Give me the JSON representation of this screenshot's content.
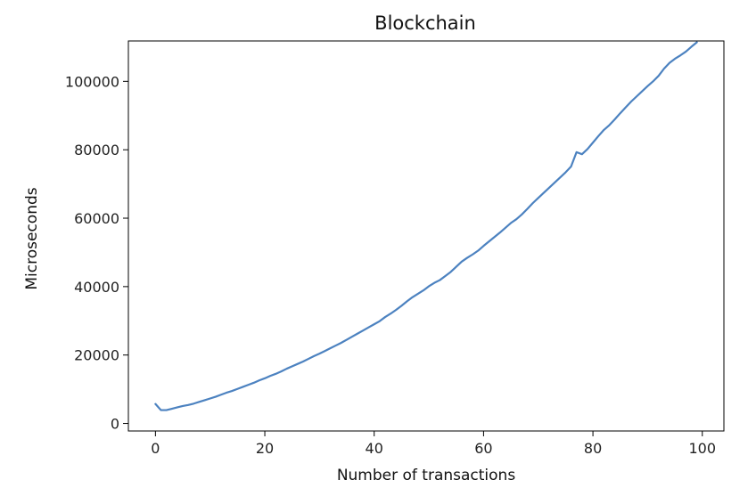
{
  "chart_data": {
    "type": "line",
    "title": "Blockchain",
    "xlabel": "Number of transactions",
    "ylabel": "Microseconds",
    "xlim": [
      -4.95,
      103.95
    ],
    "ylim": [
      -2200,
      111800
    ],
    "xticks": [
      0,
      20,
      40,
      60,
      80,
      100
    ],
    "yticks": [
      0,
      20000,
      40000,
      60000,
      80000,
      100000
    ],
    "grid": false,
    "series": [
      {
        "color": "#4c82c0",
        "x": [
          0,
          1,
          2,
          3,
          4,
          5,
          6,
          7,
          8,
          9,
          10,
          11,
          12,
          13,
          14,
          15,
          16,
          17,
          18,
          19,
          20,
          21,
          22,
          23,
          24,
          25,
          26,
          27,
          28,
          29,
          30,
          31,
          32,
          33,
          34,
          35,
          36,
          37,
          38,
          39,
          40,
          41,
          42,
          43,
          44,
          45,
          46,
          47,
          48,
          49,
          50,
          51,
          52,
          53,
          54,
          55,
          56,
          57,
          58,
          59,
          60,
          61,
          62,
          63,
          64,
          65,
          66,
          67,
          68,
          69,
          70,
          71,
          72,
          73,
          74,
          75,
          76,
          77,
          78,
          79,
          80,
          81,
          82,
          83,
          84,
          85,
          86,
          87,
          88,
          89,
          90,
          91,
          92,
          93,
          94,
          95,
          96,
          97,
          98,
          99
        ],
        "values": [
          5700,
          3900,
          3900,
          4300,
          4700,
          5100,
          5400,
          5800,
          6300,
          6800,
          7300,
          7800,
          8400,
          9000,
          9500,
          10100,
          10700,
          11300,
          11900,
          12600,
          13200,
          13900,
          14500,
          15200,
          16000,
          16700,
          17400,
          18100,
          18900,
          19700,
          20400,
          21200,
          22000,
          22800,
          23600,
          24500,
          25400,
          26300,
          27200,
          28100,
          29000,
          29900,
          31100,
          32100,
          33200,
          34400,
          35700,
          36900,
          37900,
          38900,
          40100,
          41100,
          41900,
          43100,
          44300,
          45800,
          47300,
          48400,
          49400,
          50500,
          51900,
          53200,
          54500,
          55800,
          57200,
          58600,
          59700,
          61100,
          62700,
          64400,
          65900,
          67400,
          68900,
          70400,
          71900,
          73400,
          75100,
          79300,
          78700,
          80200,
          82100,
          84000,
          85800,
          87200,
          88900,
          90700,
          92400,
          94100,
          95600,
          97100,
          98600,
          100000,
          101600,
          103700,
          105400,
          106600,
          107600,
          108700,
          110100,
          111400
        ]
      }
    ]
  }
}
